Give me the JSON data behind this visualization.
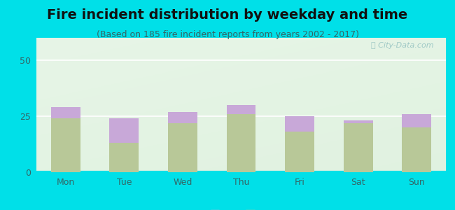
{
  "title": "Fire incident distribution by weekday and time",
  "subtitle": "(Based on 185 fire incident reports from years 2002 - 2017)",
  "categories": [
    "Mon",
    "Tue",
    "Wed",
    "Thu",
    "Fri",
    "Sat",
    "Sun"
  ],
  "pm_values": [
    24,
    13,
    22,
    26,
    18,
    22,
    20
  ],
  "am_values": [
    5,
    11,
    5,
    4,
    7,
    1,
    6
  ],
  "am_color": "#c8a8d8",
  "pm_color": "#b8c898",
  "background_outer": "#00e0e8",
  "ylim": [
    0,
    60
  ],
  "yticks": [
    0,
    25,
    50
  ],
  "bar_width": 0.5,
  "title_fontsize": 14,
  "subtitle_fontsize": 9,
  "tick_fontsize": 9,
  "legend_fontsize": 9,
  "watermark": "Ⓣ City-Data.com",
  "title_color": "#111111",
  "subtitle_color": "#336666",
  "tick_color": "#336666"
}
